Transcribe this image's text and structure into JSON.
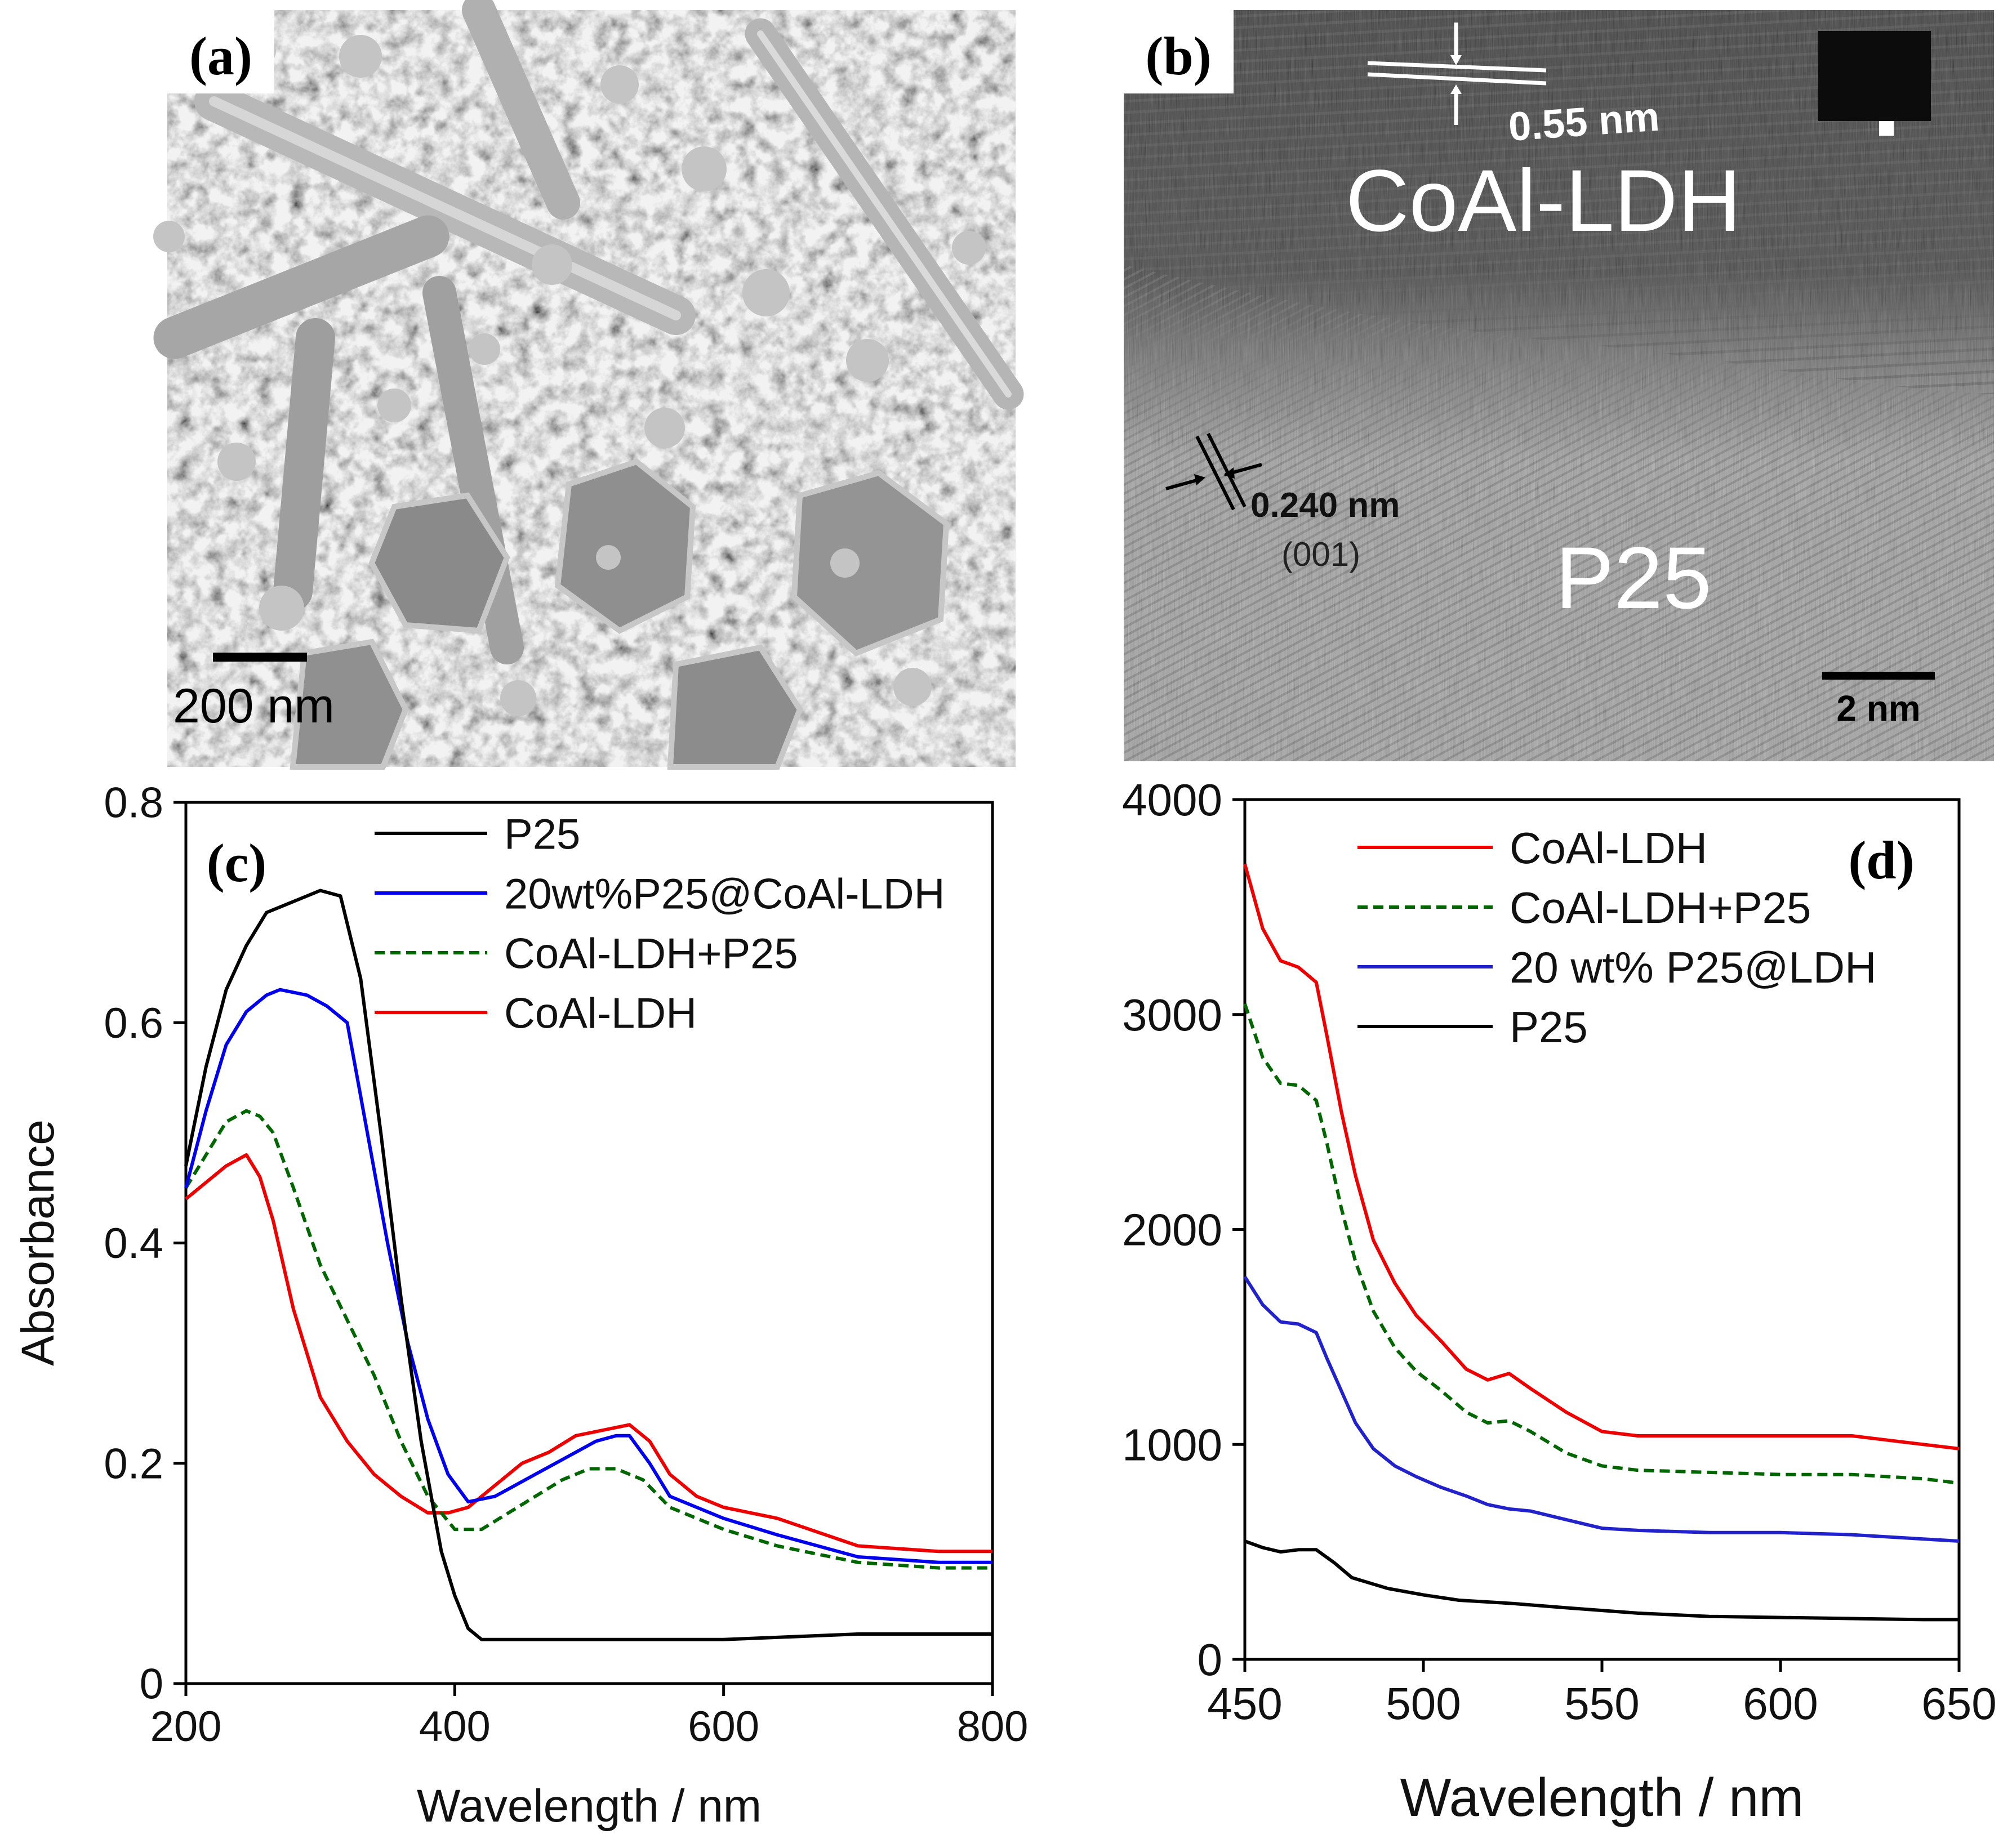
{
  "figure": {
    "panels": {
      "a": {
        "letter": "(a)",
        "scale_bar_label": "200 nm"
      },
      "b": {
        "letter": "(b)",
        "lattice_top_label": "0.55 nm",
        "material_top_label": "CoAl-LDH",
        "lattice_bottom_label": "0.240 nm",
        "plane_label": "(001)",
        "material_bottom_label": "P25",
        "scale_bar_label": "2 nm"
      }
    }
  },
  "chart_data": [
    {
      "id": "c",
      "type": "line",
      "panel_label": "(c)",
      "xlabel": "Wavelength / nm",
      "ylabel": "Absorbance",
      "xlim": [
        200,
        800
      ],
      "ylim": [
        0,
        0.8
      ],
      "xticks": [
        200,
        400,
        600,
        800
      ],
      "yticks": [
        0,
        0.2,
        0.4,
        0.6,
        0.8
      ],
      "ytick_labels": [
        "0",
        "0.2",
        "0.4",
        "0.6",
        "0.8"
      ],
      "legend_position": "top-right",
      "series": [
        {
          "name": "P25",
          "color": "#000000",
          "dashed": false,
          "x": [
            200,
            215,
            230,
            245,
            260,
            280,
            300,
            315,
            330,
            345,
            360,
            375,
            390,
            400,
            410,
            420,
            430,
            450,
            500,
            600,
            700,
            800
          ],
          "y": [
            0.47,
            0.56,
            0.63,
            0.67,
            0.7,
            0.71,
            0.72,
            0.715,
            0.64,
            0.5,
            0.35,
            0.22,
            0.12,
            0.08,
            0.05,
            0.04,
            0.04,
            0.04,
            0.04,
            0.04,
            0.045,
            0.045
          ]
        },
        {
          "name": "20wt%P25@CoAl-LDH",
          "color": "#0000ee",
          "dashed": false,
          "x": [
            200,
            215,
            230,
            245,
            260,
            270,
            290,
            305,
            320,
            335,
            350,
            365,
            380,
            395,
            410,
            430,
            445,
            460,
            475,
            490,
            505,
            520,
            530,
            545,
            560,
            580,
            600,
            640,
            700,
            760,
            800
          ],
          "y": [
            0.45,
            0.52,
            0.58,
            0.61,
            0.625,
            0.63,
            0.625,
            0.615,
            0.6,
            0.5,
            0.4,
            0.31,
            0.24,
            0.19,
            0.165,
            0.17,
            0.18,
            0.19,
            0.2,
            0.21,
            0.22,
            0.225,
            0.225,
            0.2,
            0.17,
            0.16,
            0.15,
            0.135,
            0.115,
            0.11,
            0.11
          ]
        },
        {
          "name": "CoAl-LDH+P25",
          "color": "#006600",
          "dashed": true,
          "x": [
            200,
            215,
            230,
            245,
            255,
            265,
            280,
            300,
            320,
            340,
            360,
            380,
            400,
            420,
            440,
            460,
            480,
            500,
            520,
            540,
            560,
            600,
            640,
            700,
            760,
            800
          ],
          "y": [
            0.45,
            0.48,
            0.51,
            0.52,
            0.515,
            0.5,
            0.45,
            0.38,
            0.33,
            0.28,
            0.22,
            0.17,
            0.14,
            0.14,
            0.155,
            0.17,
            0.185,
            0.195,
            0.195,
            0.185,
            0.16,
            0.14,
            0.125,
            0.11,
            0.105,
            0.105
          ]
        },
        {
          "name": "CoAl-LDH",
          "color": "#ee0000",
          "dashed": false,
          "x": [
            200,
            215,
            230,
            245,
            255,
            265,
            280,
            300,
            320,
            340,
            360,
            380,
            395,
            410,
            430,
            450,
            470,
            490,
            510,
            530,
            545,
            560,
            580,
            600,
            640,
            700,
            760,
            800
          ],
          "y": [
            0.44,
            0.455,
            0.47,
            0.48,
            0.46,
            0.42,
            0.34,
            0.26,
            0.22,
            0.19,
            0.17,
            0.155,
            0.155,
            0.16,
            0.18,
            0.2,
            0.21,
            0.225,
            0.23,
            0.235,
            0.22,
            0.19,
            0.17,
            0.16,
            0.15,
            0.125,
            0.12,
            0.12
          ]
        }
      ]
    },
    {
      "id": "d",
      "type": "line",
      "panel_label": "(d)",
      "xlabel": "Wavelength / nm",
      "ylabel": "",
      "xlim": [
        450,
        650
      ],
      "ylim": [
        0,
        4000
      ],
      "xticks": [
        450,
        500,
        550,
        600,
        650
      ],
      "yticks": [
        0,
        1000,
        2000,
        3000,
        4000
      ],
      "ytick_labels": [
        "0",
        "1000",
        "2000",
        "3000",
        "4000"
      ],
      "legend_position": "top-left",
      "series": [
        {
          "name": "CoAl-LDH",
          "color": "#ee0000",
          "dashed": false,
          "x": [
            450,
            455,
            460,
            465,
            470,
            473,
            477,
            481,
            486,
            492,
            498,
            505,
            512,
            518,
            524,
            530,
            540,
            550,
            560,
            580,
            600,
            620,
            640,
            650
          ],
          "y": [
            3700,
            3400,
            3250,
            3220,
            3150,
            2900,
            2550,
            2250,
            1950,
            1750,
            1600,
            1480,
            1350,
            1300,
            1330,
            1260,
            1150,
            1060,
            1040,
            1040,
            1040,
            1040,
            1000,
            980
          ]
        },
        {
          "name": "CoAl-LDH+P25",
          "color": "#006600",
          "dashed": true,
          "x": [
            450,
            455,
            460,
            465,
            470,
            473,
            477,
            481,
            486,
            492,
            498,
            505,
            512,
            518,
            524,
            530,
            540,
            550,
            560,
            580,
            600,
            620,
            640,
            650
          ],
          "y": [
            3050,
            2800,
            2680,
            2670,
            2600,
            2400,
            2100,
            1850,
            1620,
            1450,
            1340,
            1250,
            1150,
            1100,
            1110,
            1060,
            960,
            900,
            880,
            870,
            860,
            860,
            840,
            820
          ]
        },
        {
          "name": "20 wt% P25@LDH",
          "color": "#2222cc",
          "dashed": false,
          "x": [
            450,
            455,
            460,
            465,
            470,
            473,
            477,
            481,
            486,
            492,
            498,
            505,
            512,
            518,
            524,
            530,
            540,
            550,
            560,
            580,
            600,
            620,
            640,
            650
          ],
          "y": [
            1780,
            1650,
            1570,
            1560,
            1520,
            1400,
            1250,
            1100,
            980,
            900,
            850,
            800,
            760,
            720,
            700,
            690,
            650,
            610,
            600,
            590,
            590,
            580,
            560,
            550
          ]
        },
        {
          "name": "P25",
          "color": "#000000",
          "dashed": false,
          "x": [
            450,
            455,
            460,
            465,
            470,
            475,
            480,
            490,
            500,
            510,
            525,
            540,
            560,
            580,
            600,
            620,
            640,
            650
          ],
          "y": [
            550,
            520,
            500,
            510,
            510,
            450,
            380,
            330,
            300,
            275,
            260,
            240,
            215,
            200,
            195,
            190,
            185,
            185
          ]
        }
      ]
    }
  ]
}
